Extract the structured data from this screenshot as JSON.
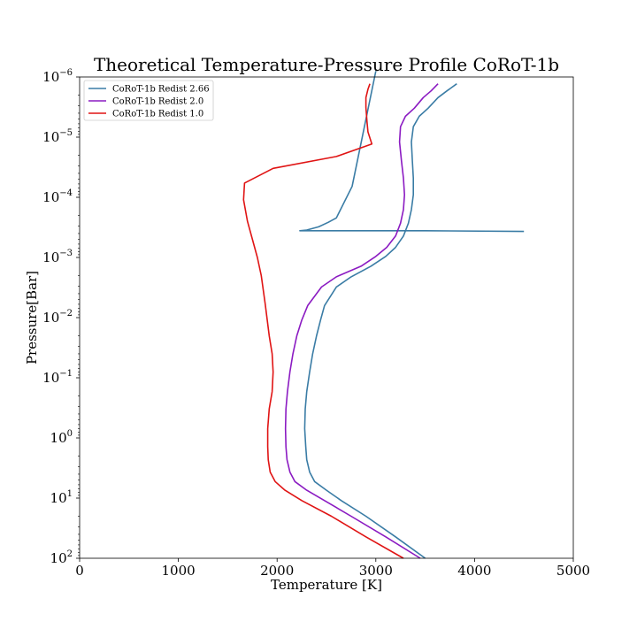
{
  "chart_data": {
    "type": "line",
    "title": "Theoretical Temperature-Pressure Profile CoRoT-1b",
    "xlabel": "Temperature [K]",
    "ylabel": "Pressure[Bar]",
    "xlim": [
      0,
      5000
    ],
    "ylim": [
      100,
      1e-06
    ],
    "yscale": "log",
    "y_inverted": true,
    "grid": false,
    "legend_position": "top-left",
    "x_ticks": [
      {
        "value": 0,
        "label": "0"
      },
      {
        "value": 1000,
        "label": "1000"
      },
      {
        "value": 2000,
        "label": "2000"
      },
      {
        "value": 3000,
        "label": "3000"
      },
      {
        "value": 4000,
        "label": "4000"
      },
      {
        "value": 5000,
        "label": "5000"
      }
    ],
    "y_ticks": [
      {
        "value": 1e-06,
        "base": "10",
        "exp": "−6"
      },
      {
        "value": 1e-05,
        "base": "10",
        "exp": "−5"
      },
      {
        "value": 0.0001,
        "base": "10",
        "exp": "−4"
      },
      {
        "value": 0.001,
        "base": "10",
        "exp": "−3"
      },
      {
        "value": 0.01,
        "base": "10",
        "exp": "−2"
      },
      {
        "value": 0.1,
        "base": "10",
        "exp": "−1"
      },
      {
        "value": 1,
        "base": "10",
        "exp": "0"
      },
      {
        "value": 10,
        "base": "10",
        "exp": "1"
      },
      {
        "value": 100,
        "base": "10",
        "exp": "2"
      }
    ],
    "series": [
      {
        "name": "CoRoT-1b Redist 2.66",
        "color": "#3a7ca5",
        "points": [
          [
            3500,
            100
          ],
          [
            3200,
            44
          ],
          [
            2900,
            20
          ],
          [
            2650,
            11
          ],
          [
            2500,
            7.4
          ],
          [
            2380,
            5.3
          ],
          [
            2330,
            3.7
          ],
          [
            2300,
            2.3
          ],
          [
            2290,
            1.4
          ],
          [
            2280,
            0.7
          ],
          [
            2285,
            0.33
          ],
          [
            2300,
            0.17
          ],
          [
            2330,
            0.08
          ],
          [
            2360,
            0.04
          ],
          [
            2400,
            0.02
          ],
          [
            2440,
            0.011
          ],
          [
            2480,
            0.0063
          ],
          [
            2600,
            0.0031
          ],
          [
            2750,
            0.0021
          ],
          [
            2950,
            0.0014
          ],
          [
            3100,
            0.00096
          ],
          [
            3200,
            0.00068
          ],
          [
            3280,
            0.00044
          ],
          [
            3330,
            0.00027
          ],
          [
            3360,
            0.00016
          ],
          [
            3380,
            9.1e-05
          ],
          [
            3380,
            4.8e-05
          ],
          [
            3370,
            2.5e-05
          ],
          [
            3360,
            1.2e-05
          ],
          [
            3380,
            6.7e-06
          ],
          [
            3440,
            4.5e-06
          ],
          [
            3530,
            3.3e-06
          ],
          [
            3630,
            2.2e-06
          ],
          [
            3720,
            1.7e-06
          ],
          [
            3820,
            1.3e-06
          ]
        ]
      },
      {
        "name": "CoRoT-1b Redist 2.66",
        "color": "#3a7ca5",
        "points": [
          [
            4500,
            0.00037
          ],
          [
            3500,
            0.00036
          ],
          [
            2500,
            0.00036
          ],
          [
            2230,
            0.00036
          ],
          [
            2300,
            0.00035
          ],
          [
            2420,
            0.00031
          ],
          [
            2520,
            0.00026
          ],
          [
            2600,
            0.00022
          ],
          [
            2760,
            6.6e-05
          ],
          [
            3000,
            8e-07
          ]
        ]
      },
      {
        "name": "CoRoT-1b Redist 2.0",
        "color": "#8b1bc2",
        "points": [
          [
            3450,
            100
          ],
          [
            3100,
            44
          ],
          [
            2750,
            20
          ],
          [
            2480,
            11
          ],
          [
            2300,
            7.4
          ],
          [
            2180,
            5.3
          ],
          [
            2130,
            3.7
          ],
          [
            2100,
            2.3
          ],
          [
            2090,
            1.4
          ],
          [
            2085,
            0.7
          ],
          [
            2090,
            0.33
          ],
          [
            2105,
            0.17
          ],
          [
            2130,
            0.08
          ],
          [
            2160,
            0.04
          ],
          [
            2200,
            0.02
          ],
          [
            2250,
            0.011
          ],
          [
            2310,
            0.0063
          ],
          [
            2450,
            0.0031
          ],
          [
            2600,
            0.0021
          ],
          [
            2850,
            0.0014
          ],
          [
            3000,
            0.00096
          ],
          [
            3110,
            0.00068
          ],
          [
            3200,
            0.00044
          ],
          [
            3250,
            0.00027
          ],
          [
            3280,
            0.00016
          ],
          [
            3290,
            9.1e-05
          ],
          [
            3280,
            4.8e-05
          ],
          [
            3260,
            2.5e-05
          ],
          [
            3240,
            1.2e-05
          ],
          [
            3250,
            6.7e-06
          ],
          [
            3300,
            4.5e-06
          ],
          [
            3390,
            3.3e-06
          ],
          [
            3480,
            2.2e-06
          ],
          [
            3560,
            1.7e-06
          ],
          [
            3630,
            1.3e-06
          ]
        ]
      },
      {
        "name": "CoRoT-1b Redist 1.0",
        "color": "#e01414",
        "points": [
          [
            3280,
            100
          ],
          [
            2900,
            44
          ],
          [
            2550,
            20
          ],
          [
            2250,
            11
          ],
          [
            2080,
            7.4
          ],
          [
            1980,
            5.3
          ],
          [
            1930,
            3.7
          ],
          [
            1910,
            2.3
          ],
          [
            1905,
            1.4
          ],
          [
            1905,
            0.7
          ],
          [
            1920,
            0.33
          ],
          [
            1950,
            0.17
          ],
          [
            1960,
            0.08
          ],
          [
            1950,
            0.04
          ],
          [
            1920,
            0.02
          ],
          [
            1880,
            0.006
          ],
          [
            1840,
            0.002
          ],
          [
            1800,
            0.001
          ],
          [
            1750,
            0.0005
          ],
          [
            1700,
            0.00025
          ],
          [
            1660,
            0.00011
          ],
          [
            1670,
            5.8e-05
          ],
          [
            1960,
            3.3e-05
          ],
          [
            2600,
            2.1e-05
          ],
          [
            2960,
            1.3e-05
          ],
          [
            2920,
            8.2e-06
          ],
          [
            2910,
            5.5e-06
          ],
          [
            2900,
            3.2e-06
          ],
          [
            2900,
            2.2e-06
          ],
          [
            2920,
            1.6e-06
          ],
          [
            2940,
            1.3e-06
          ]
        ]
      }
    ],
    "legend_entries": [
      {
        "label": "CoRoT-1b Redist 2.66",
        "color": "#3a7ca5"
      },
      {
        "label": "CoRoT-1b Redist 2.0",
        "color": "#8b1bc2"
      },
      {
        "label": "CoRoT-1b Redist 1.0",
        "color": "#e01414"
      }
    ]
  }
}
